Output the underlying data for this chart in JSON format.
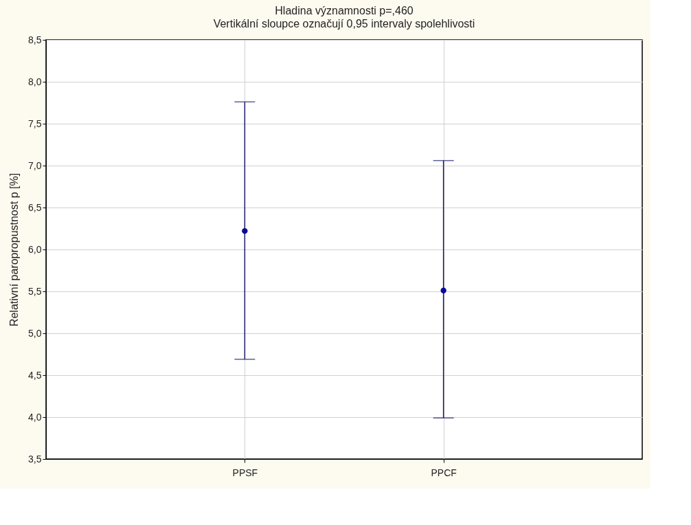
{
  "chart_data": {
    "type": "scatter",
    "title": "Hladina významnosti p=,460",
    "subtitle": "Vertikální sloupce označují 0,95 intervaly spolehlivosti",
    "ylabel": "Relativní paropropustnost p [%]",
    "categories": [
      "PPSF",
      "PPCF"
    ],
    "series": [
      {
        "color": "#0a0a9a",
        "values": [
          6.22,
          5.51
        ],
        "errors": [
          [
            4.69,
            7.76
          ],
          [
            3.99,
            7.06
          ]
        ]
      }
    ],
    "ylim": [
      3.5,
      8.5
    ],
    "yticks": [
      {
        "value": 3.5,
        "label": "3,5"
      },
      {
        "value": 4.0,
        "label": "4,0"
      },
      {
        "value": 4.5,
        "label": "4,5"
      },
      {
        "value": 5.0,
        "label": "5,0"
      },
      {
        "value": 5.5,
        "label": "5,5"
      },
      {
        "value": 6.0,
        "label": "6,0"
      },
      {
        "value": 6.5,
        "label": "6,5"
      },
      {
        "value": 7.0,
        "label": "7,0"
      },
      {
        "value": 7.5,
        "label": "7,5"
      },
      {
        "value": 8.0,
        "label": "8,0"
      },
      {
        "value": 8.5,
        "label": "8,5"
      }
    ],
    "grid": true,
    "marker": "circle"
  }
}
